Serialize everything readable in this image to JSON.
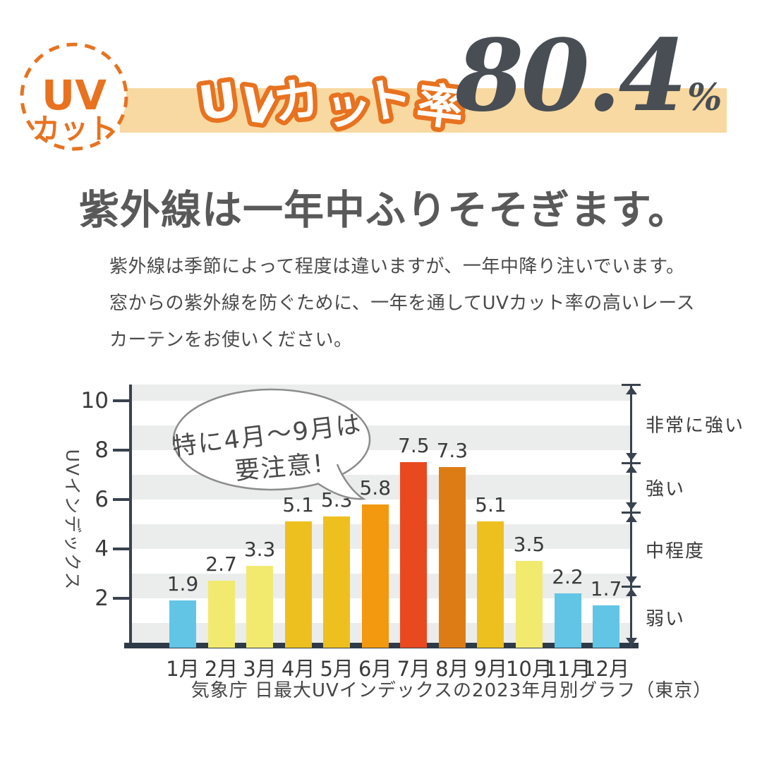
{
  "header": {
    "badge_line1": "UV",
    "badge_line2": "カット",
    "banner_title": "UVカット率",
    "rate_value": "80.4",
    "rate_unit": "%"
  },
  "heading": "紫外線は一年中ふりそそぎます。",
  "body": {
    "line1": "紫外線は季節によって程度は違いますが、一年中降り注いでいます。",
    "line2": "窓からの紫外線を防ぐために、一年を通してUVカット率の高いレース",
    "line3": "カーテンをお使いください。"
  },
  "chart_data": {
    "type": "bar",
    "title": "",
    "ylabel": "UVインデックス",
    "xlabel": "",
    "categories": [
      "1月",
      "2月",
      "3月",
      "4月",
      "5月",
      "6月",
      "7月",
      "8月",
      "9月",
      "10月",
      "11月",
      "12月"
    ],
    "values": [
      1.9,
      2.7,
      3.3,
      5.1,
      5.3,
      5.8,
      7.5,
      7.3,
      5.1,
      3.5,
      2.2,
      1.7
    ],
    "bar_colors": [
      "#62C5E6",
      "#F1EA6E",
      "#F1EA6E",
      "#EEC01F",
      "#EEC01F",
      "#F2990F",
      "#E8491F",
      "#DD7C15",
      "#EEC01F",
      "#F1EA6E",
      "#62C5E6",
      "#62C5E6"
    ],
    "yticks": [
      2,
      4,
      6,
      8,
      10
    ],
    "ylim": [
      0,
      10.66
    ],
    "grid": "alternating horizontal stripes, 1-unit bands, gray on even-to-odd intervals",
    "legend": "none",
    "bands": [
      {
        "label": "非常に強い",
        "from": 7.5,
        "to": 10.66
      },
      {
        "label": "強い",
        "from": 5.5,
        "to": 7.5
      },
      {
        "label": "中程度",
        "from": 2.5,
        "to": 5.5
      },
      {
        "label": "弱い",
        "from": 0,
        "to": 2.5
      }
    ],
    "callout": {
      "line1": "特に4月～9月は",
      "line2": "要注意!"
    },
    "source": "気象庁 日最大UVインデックスの2023年月別グラフ（東京）"
  },
  "colors": {
    "accent_orange": "#E8721F",
    "banner_background": "#F8D9A1",
    "rate_number": "#494E54",
    "heading_text": "#595959",
    "body_text": "#4A4A4A",
    "axis": "#39424E",
    "x_baseline": "#2E3A48",
    "stripe_gray": "#EBECEC",
    "bubble_border": "#8C8C8C",
    "bar_blue": "#62C5E6",
    "bar_light_yellow": "#F1EA6E",
    "bar_gold": "#EEC01F",
    "bar_orange": "#F2990F",
    "bar_red": "#E8491F",
    "bar_dark_orange": "#DD7C15"
  }
}
